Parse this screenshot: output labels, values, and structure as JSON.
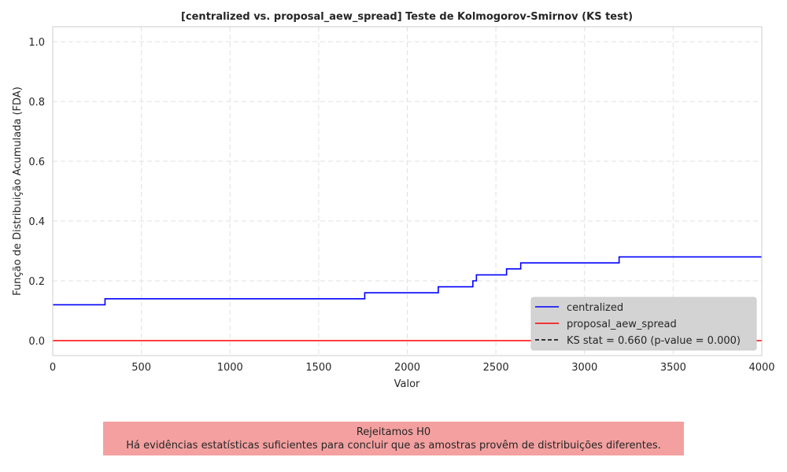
{
  "chart_data": {
    "type": "line",
    "title": "[centralized vs. proposal_aew_spread] Teste de Kolmogorov-Smirnov (KS test)",
    "xlabel": "Valor",
    "ylabel": "Função de Distribuição Acumulada (FDA)",
    "xlim": [
      0,
      4000
    ],
    "ylim": [
      -0.05,
      1.05
    ],
    "xticks": [
      "0",
      "500",
      "1000",
      "1500",
      "2000",
      "2500",
      "3000",
      "3500",
      "4000"
    ],
    "xtick_values": [
      0,
      500,
      1000,
      1500,
      2000,
      2500,
      3000,
      3500,
      4000
    ],
    "yticks": [
      "0.0",
      "0.2",
      "0.4",
      "0.6",
      "0.8",
      "1.0"
    ],
    "ytick_values": [
      0,
      0.2,
      0.4,
      0.6,
      0.8,
      1.0
    ],
    "grid": true,
    "legend_position": "lower-right",
    "series": [
      {
        "name": "centralized",
        "color": "#0000ff",
        "step": true,
        "x": [
          0,
          295,
          1760,
          2175,
          2370,
          2390,
          2560,
          2640,
          3195,
          4000
        ],
        "y": [
          0.12,
          0.14,
          0.16,
          0.18,
          0.2,
          0.22,
          0.24,
          0.26,
          0.28,
          0.28
        ]
      },
      {
        "name": "proposal_aew_spread",
        "color": "#ff0000",
        "step": true,
        "x": [
          0,
          4000
        ],
        "y": [
          0.0,
          0.0
        ]
      }
    ],
    "legend": [
      {
        "label": "centralized",
        "color": "#0000ff",
        "dash": false
      },
      {
        "label": "proposal_aew_spread",
        "color": "#ff0000",
        "dash": false
      },
      {
        "label": "KS stat = 0.660 (p-value = 0.000)",
        "color": "#000000",
        "dash": true
      }
    ]
  },
  "conclusion": {
    "title": "Rejeitamos H0",
    "text": "Há evidências estatísticas suficientes para concluir que as amostras provêm de distribuições diferentes."
  }
}
